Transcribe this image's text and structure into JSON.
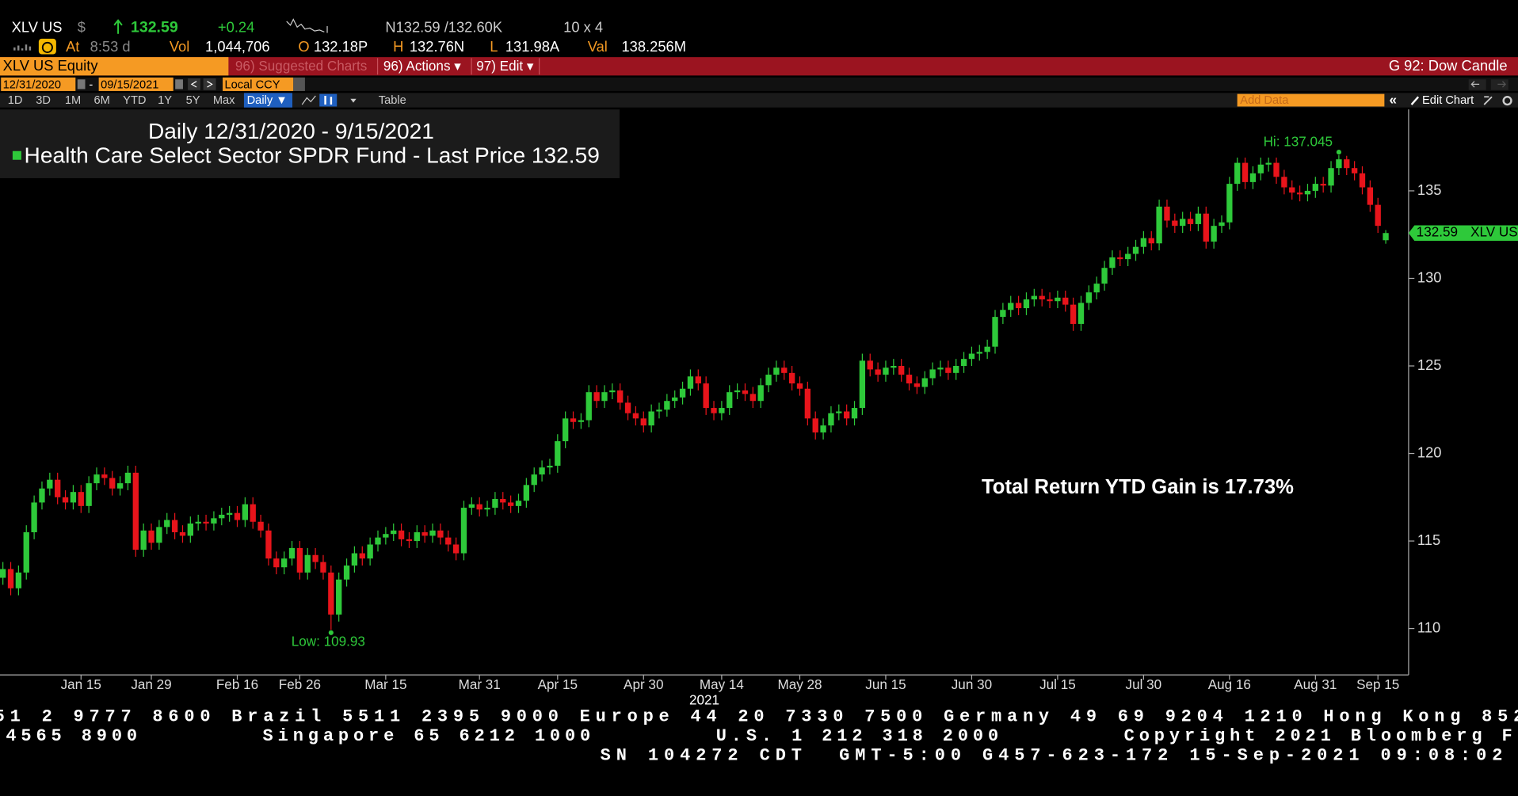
{
  "header": {
    "ticker": "XLV US",
    "currency": "$",
    "last": "132.59",
    "change": "+0.24",
    "bid_ask": "N132.59 /132.60K",
    "size": "10 x 4",
    "at_label": "At",
    "time": "8:53 d",
    "vol_label": "Vol",
    "vol": "1,044,706",
    "open_label": "O",
    "open": "132.18P",
    "high_label": "H",
    "high": "132.76N",
    "low_label": "L",
    "low": "131.98A",
    "val_label": "Val",
    "val": "138.256M"
  },
  "toolbar": {
    "security": "XLV US Equity",
    "suggested": "96) Suggested Charts",
    "actions": "96) Actions ▾",
    "edit": "97) Edit ▾",
    "function": "G 92: Dow Candle",
    "start_date": "12/31/2020",
    "dash": "-",
    "end_date": "09/15/2021",
    "currency": "Local CCY",
    "periods": [
      "1D",
      "3D",
      "1M",
      "6M",
      "YTD",
      "1Y",
      "5Y",
      "Max"
    ],
    "frequency": "Daily ▼",
    "table": "Table",
    "add_data": "Add Data",
    "edit_chart": "Edit Chart"
  },
  "chart_data": {
    "type": "candlestick",
    "title": "Daily 12/31/2020 - 9/15/2021",
    "legend_label": "Health Care Select Sector SPDR Fund - Last Price 132.59",
    "legend_color": "#2ec93a",
    "up_color": "#2ec93a",
    "down_color": "#e8141b",
    "hi_label": "Hi: 137.045",
    "low_label": "Low: 109.93",
    "annotation": "Total Return YTD Gain is 17.73%",
    "year_label": "2021",
    "price_tag": "132.59",
    "price_tag_ticker": "XLV US",
    "ylim": [
      107.35,
      139.65
    ],
    "yticks": [
      110,
      115,
      120,
      125,
      130,
      135
    ],
    "categories": [
      null,
      null,
      null,
      null,
      null,
      null,
      null,
      null,
      null,
      null,
      "Jan 15",
      null,
      null,
      null,
      null,
      null,
      null,
      null,
      null,
      "Jan 29",
      null,
      null,
      null,
      null,
      null,
      null,
      null,
      null,
      null,
      null,
      "Feb 16",
      null,
      null,
      null,
      null,
      null,
      null,
      null,
      "Feb 26",
      null,
      null,
      null,
      null,
      null,
      null,
      null,
      null,
      null,
      null,
      "Mar 15",
      null,
      null,
      null,
      null,
      null,
      null,
      null,
      null,
      null,
      null,
      null,
      "Mar 31",
      null,
      null,
      null,
      null,
      null,
      null,
      null,
      null,
      null,
      "Apr 15",
      null,
      null,
      null,
      null,
      null,
      null,
      null,
      null,
      null,
      null,
      "Apr 30",
      null,
      null,
      null,
      null,
      null,
      null,
      null,
      null,
      null,
      "May 14",
      null,
      null,
      null,
      null,
      null,
      null,
      null,
      null,
      null,
      "May 28",
      null,
      null,
      null,
      null,
      null,
      null,
      null,
      null,
      null,
      null,
      "Jun 15",
      null,
      null,
      null,
      null,
      null,
      null,
      null,
      null,
      null,
      null,
      "Jun 30",
      null,
      null,
      null,
      null,
      null,
      null,
      null,
      null,
      null,
      null,
      "Jul 15",
      null,
      null,
      null,
      null,
      null,
      null,
      null,
      null,
      null,
      null,
      "Jul 30",
      null,
      null,
      null,
      null,
      null,
      null,
      null,
      null,
      null,
      null,
      "Aug 16",
      null,
      null,
      null,
      null,
      null,
      null,
      null,
      null,
      null,
      null,
      "Aug 31",
      null,
      null,
      null,
      null,
      null,
      null,
      null,
      "Sep 15",
      null
    ],
    "open": [
      112.9,
      113.4,
      112.3,
      113.2,
      115.5,
      117.2,
      118.0,
      118.5,
      117.5,
      117.2,
      117.8,
      117.0,
      118.3,
      118.8,
      118.6,
      118.0,
      118.3,
      118.9,
      114.5,
      115.6,
      114.9,
      115.8,
      116.2,
      115.5,
      115.3,
      116.0,
      116.1,
      116.0,
      116.3,
      116.5,
      116.6,
      116.2,
      117.1,
      116.1,
      115.6,
      114.0,
      113.5,
      114.0,
      114.6,
      113.2,
      114.2,
      113.8,
      113.2,
      110.8,
      112.8,
      113.6,
      114.3,
      114.0,
      114.8,
      115.2,
      115.4,
      115.6,
      115.1,
      115.0,
      115.5,
      115.3,
      115.6,
      115.2,
      114.8,
      114.3,
      116.9,
      117.1,
      116.8,
      116.9,
      117.4,
      117.2,
      117.0,
      117.3,
      118.2,
      118.8,
      119.2,
      119.3,
      120.7,
      122.0,
      121.8,
      121.9,
      123.5,
      123.0,
      123.5,
      123.6,
      122.9,
      122.3,
      122.0,
      121.6,
      122.4,
      122.5,
      123.0,
      123.2,
      123.7,
      124.4,
      124.0,
      122.6,
      122.3,
      122.6,
      123.5,
      123.6,
      123.4,
      123.0,
      123.9,
      124.5,
      124.9,
      124.6,
      124.0,
      123.7,
      122.0,
      121.2,
      121.6,
      122.3,
      122.4,
      122.0,
      122.6,
      125.3,
      124.8,
      124.5,
      124.9,
      125.0,
      124.5,
      124.0,
      123.8,
      124.3,
      124.8,
      124.9,
      124.6,
      125.0,
      125.4,
      125.7,
      125.8,
      126.1,
      127.8,
      128.2,
      128.6,
      128.3,
      128.8,
      129.0,
      128.8,
      128.7,
      128.9,
      128.5,
      127.4,
      128.6,
      129.2,
      129.7,
      130.6,
      131.2,
      131.1,
      131.4,
      131.8,
      132.3,
      132.0,
      134.1,
      133.3,
      133.0,
      133.4,
      133.1,
      133.7,
      132.1,
      133.0,
      133.2,
      135.4,
      136.6,
      135.5,
      136.0,
      136.5,
      136.6,
      135.8,
      135.2,
      134.9,
      134.8,
      135.0,
      135.4,
      135.3,
      136.3,
      136.8,
      136.3,
      136.0,
      135.2,
      134.2,
      132.18
    ],
    "high": [
      113.8,
      113.8,
      113.6,
      115.9,
      117.6,
      118.4,
      118.9,
      118.9,
      117.9,
      118.2,
      118.2,
      118.7,
      119.2,
      119.2,
      119.0,
      118.7,
      119.3,
      119.3,
      116.0,
      116.0,
      116.2,
      116.6,
      116.6,
      115.9,
      116.4,
      116.5,
      116.5,
      116.7,
      116.9,
      117.0,
      117.0,
      117.5,
      117.5,
      116.5,
      116.0,
      114.4,
      114.4,
      115.0,
      115.0,
      114.6,
      114.6,
      114.2,
      113.6,
      113.2,
      114.0,
      114.7,
      114.7,
      115.2,
      115.6,
      115.8,
      116.0,
      116.0,
      115.5,
      115.9,
      115.9,
      116.0,
      116.0,
      115.6,
      115.2,
      117.3,
      117.5,
      117.5,
      117.3,
      117.8,
      117.8,
      117.6,
      117.7,
      118.6,
      119.2,
      119.6,
      119.7,
      121.1,
      122.4,
      122.4,
      122.3,
      123.9,
      123.9,
      123.9,
      124.0,
      124.0,
      123.3,
      122.7,
      122.4,
      122.8,
      122.9,
      123.4,
      123.6,
      124.1,
      124.8,
      124.8,
      124.4,
      123.0,
      123.0,
      123.9,
      124.0,
      124.0,
      123.8,
      124.3,
      124.9,
      125.3,
      125.3,
      125.0,
      124.4,
      124.1,
      122.4,
      122.0,
      122.7,
      122.8,
      122.8,
      123.0,
      125.7,
      125.7,
      125.2,
      125.3,
      125.4,
      125.4,
      124.9,
      124.4,
      124.7,
      125.2,
      125.3,
      125.3,
      125.4,
      125.8,
      126.1,
      126.2,
      126.5,
      128.2,
      128.6,
      129.0,
      129.0,
      129.2,
      129.4,
      129.4,
      129.2,
      129.3,
      129.3,
      128.9,
      129.0,
      129.6,
      130.1,
      131.0,
      131.6,
      131.6,
      131.8,
      132.2,
      132.7,
      132.7,
      134.5,
      134.5,
      133.7,
      133.8,
      133.8,
      134.1,
      134.1,
      133.4,
      133.6,
      135.8,
      136.9,
      136.9,
      136.4,
      136.9,
      136.9,
      136.9,
      136.2,
      135.6,
      135.3,
      135.4,
      135.8,
      135.8,
      136.7,
      137.045,
      137.0,
      136.7,
      136.4,
      135.6,
      134.6,
      132.76
    ],
    "low": [
      112.5,
      111.9,
      111.9,
      112.8,
      115.1,
      116.8,
      117.6,
      117.1,
      116.8,
      116.8,
      116.6,
      116.6,
      117.9,
      118.2,
      117.6,
      117.6,
      117.9,
      114.1,
      114.1,
      114.5,
      114.5,
      115.4,
      115.1,
      114.9,
      114.9,
      115.6,
      115.6,
      115.6,
      115.9,
      116.1,
      115.8,
      115.8,
      115.7,
      115.2,
      113.6,
      113.1,
      113.1,
      113.6,
      112.8,
      112.8,
      113.4,
      112.8,
      109.93,
      110.4,
      112.4,
      113.2,
      113.6,
      113.6,
      114.4,
      114.8,
      115.0,
      114.7,
      114.6,
      114.6,
      114.9,
      114.9,
      114.8,
      114.4,
      113.9,
      113.9,
      116.5,
      116.4,
      116.4,
      116.5,
      116.8,
      116.6,
      116.6,
      116.9,
      117.8,
      118.4,
      118.8,
      118.9,
      120.3,
      121.4,
      121.4,
      121.5,
      122.6,
      122.6,
      123.1,
      122.5,
      121.9,
      121.6,
      121.2,
      121.2,
      122.0,
      122.1,
      122.6,
      122.8,
      123.3,
      123.6,
      122.2,
      121.9,
      121.9,
      122.2,
      123.1,
      123.0,
      122.6,
      122.6,
      123.5,
      124.1,
      124.2,
      123.6,
      123.3,
      121.6,
      120.8,
      120.8,
      121.2,
      121.9,
      121.6,
      121.6,
      122.2,
      124.4,
      124.1,
      124.1,
      124.5,
      124.1,
      123.6,
      123.4,
      123.4,
      123.9,
      124.4,
      124.2,
      124.2,
      124.6,
      125.0,
      125.3,
      125.4,
      125.7,
      127.4,
      127.8,
      127.9,
      127.9,
      128.4,
      128.4,
      128.3,
      128.3,
      128.1,
      127.0,
      127.0,
      128.2,
      128.8,
      129.3,
      130.2,
      130.7,
      130.7,
      131.0,
      131.4,
      131.6,
      131.6,
      132.9,
      132.6,
      132.6,
      132.7,
      132.7,
      131.7,
      131.7,
      132.6,
      132.8,
      135.0,
      135.1,
      135.1,
      135.6,
      136.1,
      135.4,
      134.8,
      134.5,
      134.4,
      134.4,
      134.6,
      134.9,
      134.9,
      135.9,
      135.9,
      135.6,
      134.8,
      133.8,
      132.6,
      131.98
    ],
    "close": [
      113.4,
      112.3,
      113.2,
      115.5,
      117.2,
      118.0,
      118.5,
      117.5,
      117.2,
      117.8,
      117.0,
      118.3,
      118.8,
      118.6,
      118.0,
      118.3,
      118.9,
      114.5,
      115.6,
      114.9,
      115.8,
      116.2,
      115.5,
      115.3,
      116.0,
      116.1,
      116.0,
      116.3,
      116.5,
      116.6,
      116.2,
      117.1,
      116.1,
      115.6,
      114.0,
      113.5,
      114.0,
      114.6,
      113.2,
      114.2,
      113.8,
      113.2,
      110.8,
      112.8,
      113.6,
      114.3,
      114.0,
      114.8,
      115.2,
      115.4,
      115.6,
      115.1,
      115.0,
      115.5,
      115.3,
      115.6,
      115.2,
      114.8,
      114.3,
      116.9,
      117.1,
      116.8,
      116.9,
      117.4,
      117.2,
      117.0,
      117.3,
      118.2,
      118.8,
      119.2,
      119.3,
      120.7,
      122.0,
      121.8,
      121.9,
      123.5,
      123.0,
      123.5,
      123.6,
      122.9,
      122.3,
      122.0,
      121.6,
      122.4,
      122.5,
      123.0,
      123.2,
      123.7,
      124.4,
      124.0,
      122.6,
      122.3,
      122.6,
      123.5,
      123.6,
      123.4,
      123.0,
      123.9,
      124.5,
      124.9,
      124.6,
      124.0,
      123.7,
      122.0,
      121.2,
      121.6,
      122.3,
      122.4,
      122.0,
      122.6,
      125.3,
      124.8,
      124.5,
      124.9,
      125.0,
      124.5,
      124.0,
      123.8,
      124.3,
      124.8,
      124.9,
      124.6,
      125.0,
      125.4,
      125.7,
      125.8,
      126.1,
      127.8,
      128.2,
      128.6,
      128.3,
      128.8,
      129.0,
      128.8,
      128.7,
      128.9,
      128.5,
      127.4,
      128.6,
      129.2,
      129.7,
      130.6,
      131.2,
      131.1,
      131.4,
      131.8,
      132.3,
      132.0,
      134.1,
      133.3,
      133.0,
      133.4,
      133.1,
      133.7,
      132.1,
      133.0,
      133.2,
      135.4,
      136.6,
      135.5,
      136.0,
      136.5,
      136.6,
      135.8,
      135.2,
      134.9,
      134.8,
      135.0,
      135.4,
      135.3,
      136.3,
      136.8,
      136.3,
      136.0,
      135.2,
      134.2,
      133.0,
      132.59
    ]
  },
  "footer": [
    "51 2 9777 8600 Brazil 5511 2395 9000 Europe 44 20 7330 7500 Germany 49 69 9204 1210 Hong Kong 852",
    "4565 8900        Singapore 65 6212 1000        U.S. 1 212 318 2000        Copyright 2021 Bloomberg F",
    "SN 104272 CDT  GMT-5:00 G457-623-172 15-Sep-2021 09:08:02"
  ]
}
